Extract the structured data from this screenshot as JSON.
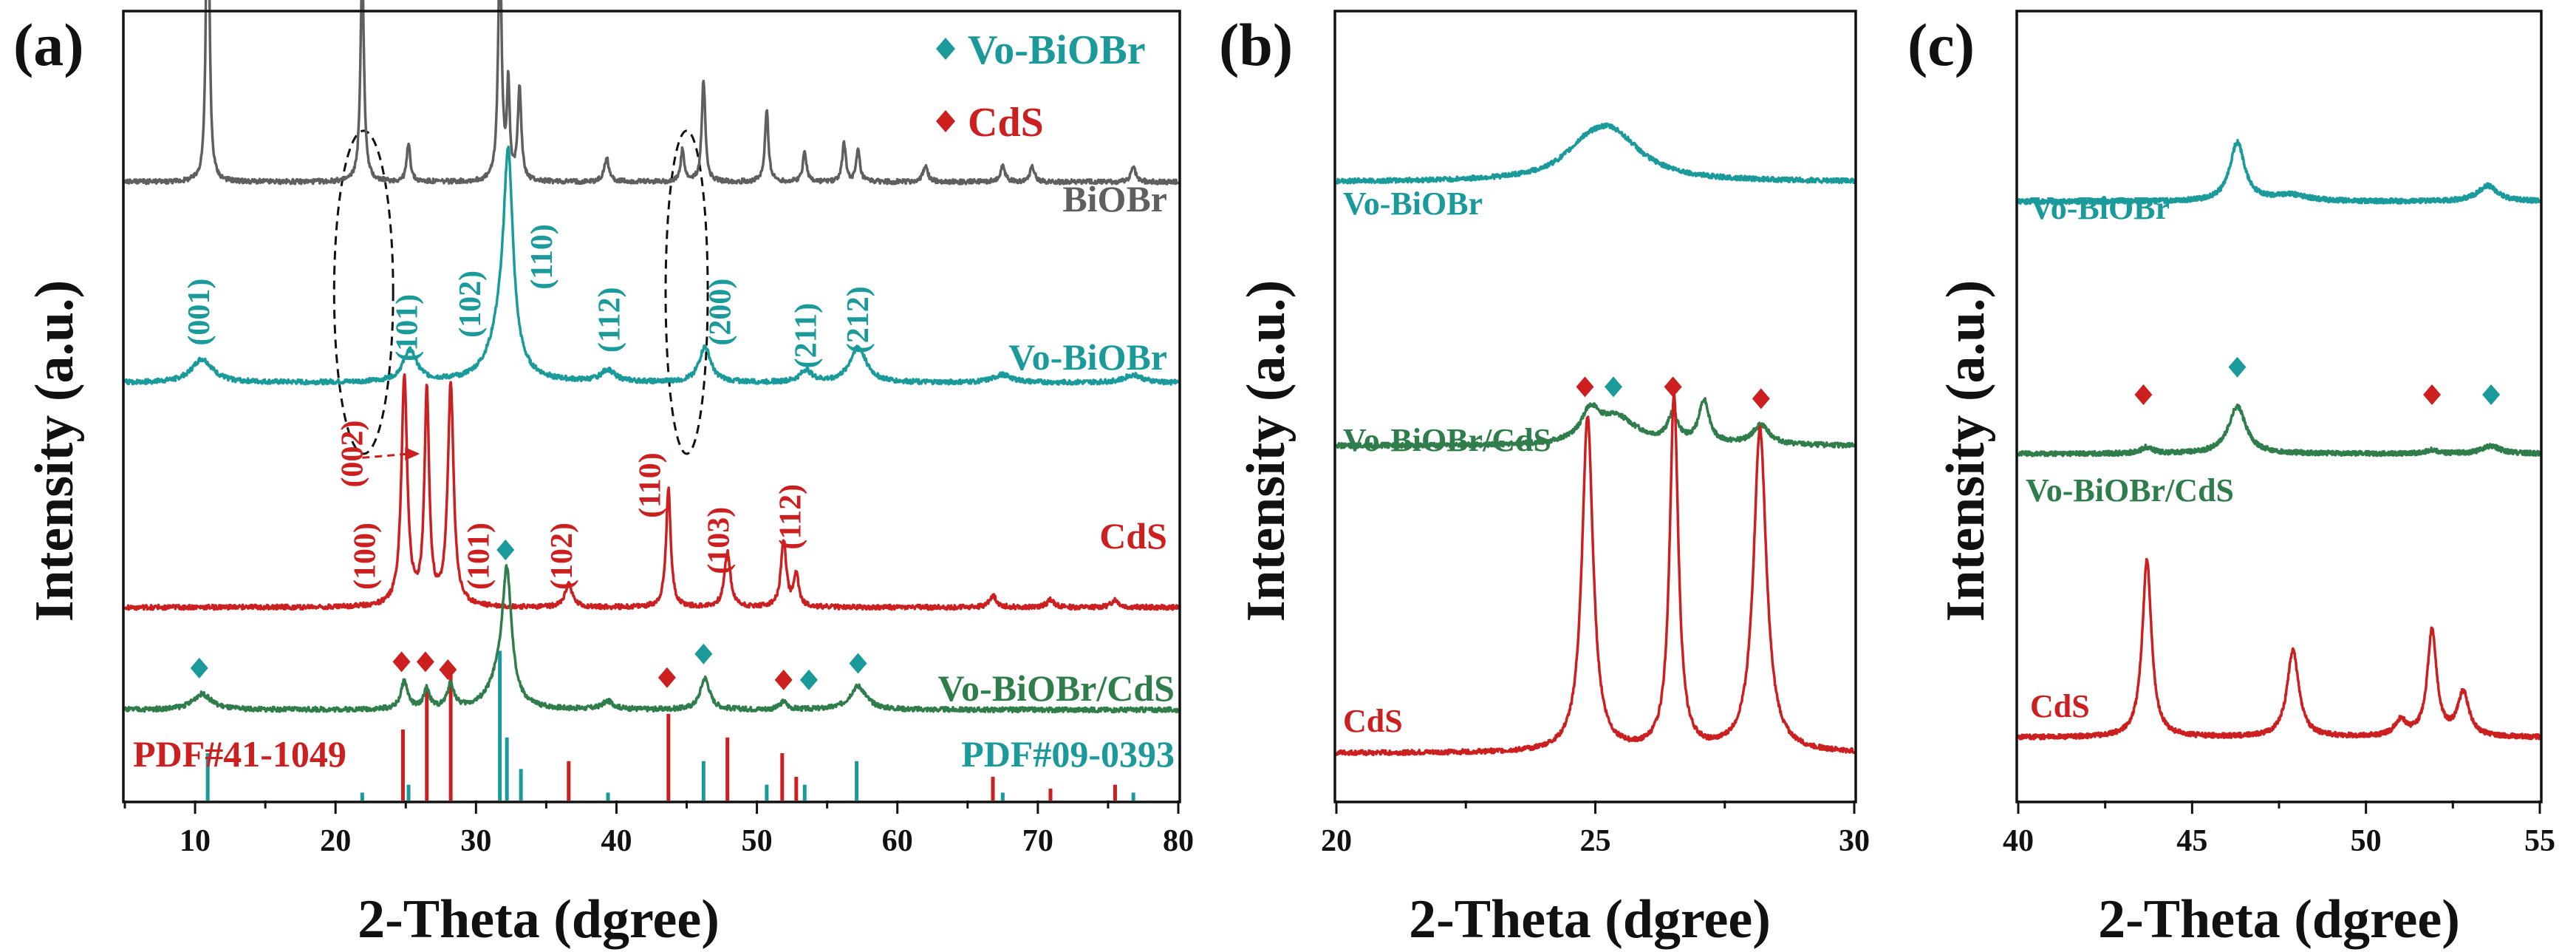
{
  "colors": {
    "black": "#1a1a1a",
    "gray": "#5f5f5f",
    "teal": "#1a9a9a",
    "red": "#cc1f1f",
    "green": "#2e7d4b"
  },
  "chart_data": [
    {
      "type": "line",
      "panel_label": "(a)",
      "xlabel": "2-Theta (dgree)",
      "ylabel": "Intensity (a.u.)",
      "xlim": [
        5,
        80
      ],
      "xticks": [
        "10",
        "20",
        "30",
        "40",
        "50",
        "60",
        "70",
        "80"
      ],
      "legend": [
        {
          "marker": "diamond",
          "color": "teal",
          "label": "Vo-BiOBr"
        },
        {
          "marker": "diamond",
          "color": "red",
          "label": "CdS"
        }
      ],
      "series": [
        {
          "name": "BiOBr",
          "color": "gray",
          "label": "BiOBr",
          "baseline": 0.785,
          "peaks": [
            [
              10.9,
              0.51,
              0.12
            ],
            [
              21.9,
              0.27,
              0.15
            ],
            [
              25.2,
              0.05,
              0.15
            ],
            [
              31.7,
              0.3,
              0.15
            ],
            [
              32.3,
              0.12,
              0.12
            ],
            [
              33.1,
              0.12,
              0.15
            ],
            [
              39.3,
              0.03,
              0.2
            ],
            [
              44.7,
              0.04,
              0.15
            ],
            [
              46.2,
              0.13,
              0.15
            ],
            [
              50.7,
              0.09,
              0.15
            ],
            [
              53.4,
              0.04,
              0.15
            ],
            [
              56.2,
              0.05,
              0.15
            ],
            [
              57.2,
              0.04,
              0.15
            ],
            [
              62.0,
              0.02,
              0.2
            ],
            [
              67.5,
              0.02,
              0.2
            ],
            [
              69.6,
              0.02,
              0.2
            ],
            [
              76.8,
              0.02,
              0.2
            ]
          ]
        },
        {
          "name": "Vo-BiOBr",
          "color": "teal",
          "label": "Vo-BiOBr",
          "baseline": 0.53,
          "peaks": [
            [
              10.5,
              0.03,
              0.9
            ],
            [
              25.3,
              0.04,
              0.6
            ],
            [
              31.8,
              0.06,
              1.0
            ],
            [
              32.3,
              0.25,
              0.4
            ],
            [
              39.4,
              0.015,
              0.6
            ],
            [
              46.3,
              0.045,
              0.5
            ],
            [
              53.5,
              0.015,
              0.5
            ],
            [
              57.2,
              0.045,
              0.7
            ],
            [
              67.5,
              0.01,
              0.8
            ],
            [
              76.8,
              0.01,
              0.8
            ]
          ]
        },
        {
          "name": "CdS",
          "color": "red",
          "label": "CdS",
          "baseline": 0.245,
          "peaks": [
            [
              24.9,
              0.29,
              0.25
            ],
            [
              26.5,
              0.27,
              0.2
            ],
            [
              28.2,
              0.28,
              0.25
            ],
            [
              36.6,
              0.03,
              0.3
            ],
            [
              43.7,
              0.15,
              0.2
            ],
            [
              47.9,
              0.07,
              0.25
            ],
            [
              51.9,
              0.085,
              0.22
            ],
            [
              52.8,
              0.04,
              0.22
            ],
            [
              66.8,
              0.015,
              0.3
            ],
            [
              70.9,
              0.01,
              0.3
            ],
            [
              75.5,
              0.01,
              0.3
            ]
          ]
        },
        {
          "name": "Vo-BiOBr/CdS",
          "color": "green",
          "label": "Vo-BiOBr/CdS",
          "baseline": 0.115,
          "peaks": [
            [
              10.5,
              0.02,
              0.8
            ],
            [
              24.9,
              0.035,
              0.3
            ],
            [
              26.5,
              0.025,
              0.25
            ],
            [
              28.2,
              0.03,
              0.3
            ],
            [
              32.2,
              0.16,
              0.4
            ],
            [
              31.6,
              0.03,
              0.9
            ],
            [
              39.4,
              0.01,
              0.5
            ],
            [
              46.3,
              0.04,
              0.4
            ],
            [
              51.9,
              0.01,
              0.3
            ],
            [
              57.2,
              0.03,
              0.7
            ]
          ]
        }
      ],
      "hkl_teal": [
        {
          "x": 10.5,
          "y": 0.62,
          "label": "(001)"
        },
        {
          "x": 25.3,
          "y": 0.6,
          "label": "(101)"
        },
        {
          "x": 29.8,
          "y": 0.63,
          "label": "(102)"
        },
        {
          "x": 34.9,
          "y": 0.69,
          "label": "(110)"
        },
        {
          "x": 39.7,
          "y": 0.61,
          "label": "(112)"
        },
        {
          "x": 47.6,
          "y": 0.62,
          "label": "(200)"
        },
        {
          "x": 53.7,
          "y": 0.59,
          "label": "(211)"
        },
        {
          "x": 57.4,
          "y": 0.61,
          "label": "(212)"
        }
      ],
      "hkl_red": [
        {
          "x": 21.4,
          "y": 0.44,
          "label": "(002)"
        },
        {
          "x": 22.3,
          "y": 0.31,
          "label": "(100)"
        },
        {
          "x": 30.4,
          "y": 0.31,
          "label": "(101)"
        },
        {
          "x": 36.3,
          "y": 0.31,
          "label": "(102)"
        },
        {
          "x": 42.6,
          "y": 0.4,
          "label": "(110)"
        },
        {
          "x": 47.5,
          "y": 0.33,
          "label": "(103)"
        },
        {
          "x": 52.6,
          "y": 0.36,
          "label": "(112)"
        }
      ],
      "markers": [
        {
          "x": 10.3,
          "y": 0.168,
          "color": "teal"
        },
        {
          "x": 24.7,
          "y": 0.176,
          "color": "red"
        },
        {
          "x": 26.4,
          "y": 0.176,
          "color": "red"
        },
        {
          "x": 28.0,
          "y": 0.166,
          "color": "red"
        },
        {
          "x": 32.1,
          "y": 0.318,
          "color": "teal"
        },
        {
          "x": 43.6,
          "y": 0.156,
          "color": "red"
        },
        {
          "x": 46.2,
          "y": 0.186,
          "color": "teal"
        },
        {
          "x": 51.9,
          "y": 0.153,
          "color": "red"
        },
        {
          "x": 53.7,
          "y": 0.153,
          "color": "teal"
        },
        {
          "x": 57.2,
          "y": 0.174,
          "color": "teal"
        }
      ],
      "ellipses": [
        {
          "x": 22.0,
          "y": 0.645,
          "rx": 2.1,
          "ry": 0.205
        },
        {
          "x": 45.0,
          "y": 0.645,
          "rx": 1.5,
          "ry": 0.205
        }
      ],
      "arrow": {
        "from": [
          21.9,
          0.435
        ],
        "to": [
          26.0,
          0.44
        ]
      },
      "ref_pdf_red": {
        "label": "PDF#41-1049",
        "positions": [
          [
            24.8,
            0.09
          ],
          [
            26.5,
            0.14
          ],
          [
            28.2,
            0.16
          ],
          [
            36.6,
            0.05
          ],
          [
            43.7,
            0.11
          ],
          [
            47.9,
            0.08
          ],
          [
            51.8,
            0.06
          ],
          [
            52.8,
            0.03
          ],
          [
            66.8,
            0.03
          ],
          [
            70.9,
            0.015
          ],
          [
            75.5,
            0.02
          ]
        ]
      },
      "ref_pdf_teal": {
        "label": "PDF#09-0393",
        "positions": [
          [
            10.9,
            0.06
          ],
          [
            21.9,
            0.01
          ],
          [
            25.2,
            0.02
          ],
          [
            31.7,
            0.19
          ],
          [
            32.2,
            0.08
          ],
          [
            33.2,
            0.04
          ],
          [
            39.4,
            0.01
          ],
          [
            46.2,
            0.05
          ],
          [
            50.7,
            0.02
          ],
          [
            53.4,
            0.02
          ],
          [
            57.1,
            0.05
          ],
          [
            67.5,
            0.01
          ],
          [
            76.8,
            0.01
          ]
        ]
      }
    },
    {
      "type": "line",
      "panel_label": "(b)",
      "xlabel": "2-Theta (dgree)",
      "ylabel": "Intensity (a.u.)",
      "xlim": [
        20,
        30
      ],
      "xticks": [
        "20",
        "25",
        "30"
      ],
      "series": [
        {
          "name": "Vo-BiOBr",
          "color": "teal",
          "label": "Vo-BiOBr",
          "baseline": 0.785,
          "peaks": [
            [
              25.3,
              0.06,
              0.7
            ],
            [
              24.8,
              0.02,
              0.5
            ]
          ]
        },
        {
          "name": "Vo-BiOBr/CdS",
          "color": "green",
          "label": "Vo-BiOBr/CdS",
          "baseline": 0.45,
          "peaks": [
            [
              24.9,
              0.035,
              0.2
            ],
            [
              25.4,
              0.035,
              0.5
            ],
            [
              26.5,
              0.035,
              0.12
            ],
            [
              27.1,
              0.055,
              0.12
            ],
            [
              28.2,
              0.025,
              0.2
            ]
          ]
        },
        {
          "name": "CdS",
          "color": "red",
          "label": "CdS",
          "baseline": 0.06,
          "peaks": [
            [
              24.85,
              0.425,
              0.13
            ],
            [
              26.52,
              0.45,
              0.1
            ],
            [
              28.18,
              0.41,
              0.15
            ]
          ]
        }
      ],
      "markers": [
        {
          "x": 24.8,
          "y": 0.525,
          "color": "red"
        },
        {
          "x": 25.35,
          "y": 0.525,
          "color": "teal"
        },
        {
          "x": 26.5,
          "y": 0.525,
          "color": "red"
        },
        {
          "x": 28.2,
          "y": 0.51,
          "color": "red"
        }
      ]
    },
    {
      "type": "line",
      "panel_label": "(c)",
      "xlabel": "2-Theta (dgree)",
      "ylabel": "Intensity (a.u.)",
      "xlim": [
        40,
        55
      ],
      "xticks": [
        "40",
        "45",
        "50",
        "55"
      ],
      "series": [
        {
          "name": "Vo-BiOBr",
          "color": "teal",
          "label": "Vo-BiOBr",
          "baseline": 0.76,
          "peaks": [
            [
              46.3,
              0.075,
              0.25
            ],
            [
              47.8,
              0.008,
              0.6
            ],
            [
              53.5,
              0.02,
              0.35
            ]
          ]
        },
        {
          "name": "Vo-BiOBr/CdS",
          "color": "green",
          "label": "Vo-BiOBr/CdS",
          "baseline": 0.44,
          "peaks": [
            [
              46.3,
              0.06,
              0.3
            ],
            [
              43.7,
              0.008,
              0.2
            ],
            [
              51.9,
              0.005,
              0.2
            ],
            [
              53.6,
              0.01,
              0.3
            ]
          ]
        },
        {
          "name": "CdS",
          "color": "red",
          "label": "CdS",
          "baseline": 0.08,
          "peaks": [
            [
              43.7,
              0.225,
              0.16
            ],
            [
              47.9,
              0.11,
              0.2
            ],
            [
              51.0,
              0.02,
              0.2
            ],
            [
              51.9,
              0.135,
              0.16
            ],
            [
              52.8,
              0.055,
              0.2
            ]
          ]
        }
      ],
      "markers": [
        {
          "x": 43.6,
          "y": 0.515,
          "color": "red"
        },
        {
          "x": 46.3,
          "y": 0.55,
          "color": "teal"
        },
        {
          "x": 51.9,
          "y": 0.515,
          "color": "red"
        },
        {
          "x": 53.6,
          "y": 0.515,
          "color": "teal"
        }
      ]
    }
  ]
}
